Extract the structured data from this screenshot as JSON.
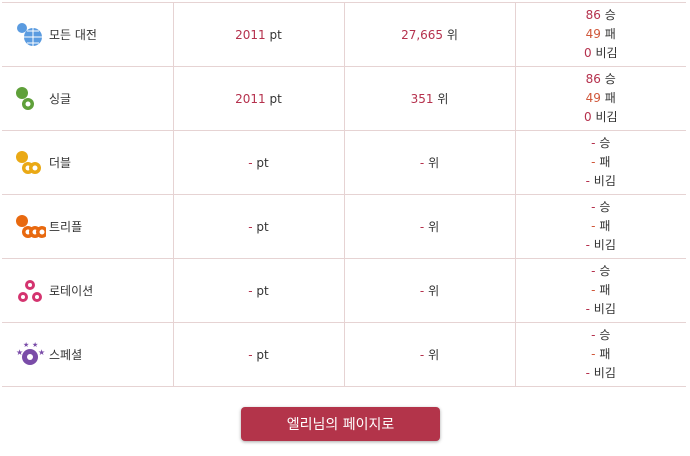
{
  "rows": [
    {
      "label": "모든 대전",
      "icon": "globe-battle-icon",
      "color": "#5a9be0",
      "points": "2011",
      "points_unit": "pt",
      "rank": "27,665",
      "rank_unit": "위",
      "wins": "86",
      "losses": "49",
      "draws": "0"
    },
    {
      "label": "싱글",
      "icon": "single-battle-icon",
      "color": "#5fa03a",
      "points": "2011",
      "points_unit": "pt",
      "rank": "351",
      "rank_unit": "위",
      "wins": "86",
      "losses": "49",
      "draws": "0"
    },
    {
      "label": "더블",
      "icon": "double-battle-icon",
      "color": "#eaa915",
      "points": "-",
      "points_unit": "pt",
      "rank": "-",
      "rank_unit": "위",
      "wins": "-",
      "losses": "-",
      "draws": "-"
    },
    {
      "label": "트리플",
      "icon": "triple-battle-icon",
      "color": "#e8690f",
      "points": "-",
      "points_unit": "pt",
      "rank": "-",
      "rank_unit": "위",
      "wins": "-",
      "losses": "-",
      "draws": "-"
    },
    {
      "label": "로테이션",
      "icon": "rotation-battle-icon",
      "color": "#d4346f",
      "points": "-",
      "points_unit": "pt",
      "rank": "-",
      "rank_unit": "위",
      "wins": "-",
      "losses": "-",
      "draws": "-"
    },
    {
      "label": "스페셜",
      "icon": "special-battle-icon",
      "color": "#7a4ca8",
      "points": "-",
      "points_unit": "pt",
      "rank": "-",
      "rank_unit": "위",
      "wins": "-",
      "losses": "-",
      "draws": "-"
    }
  ],
  "units": {
    "win": "승",
    "loss": "패",
    "draw": "비김"
  },
  "button": {
    "label": "엘리님의 페이지로",
    "color": "#b3344a"
  }
}
